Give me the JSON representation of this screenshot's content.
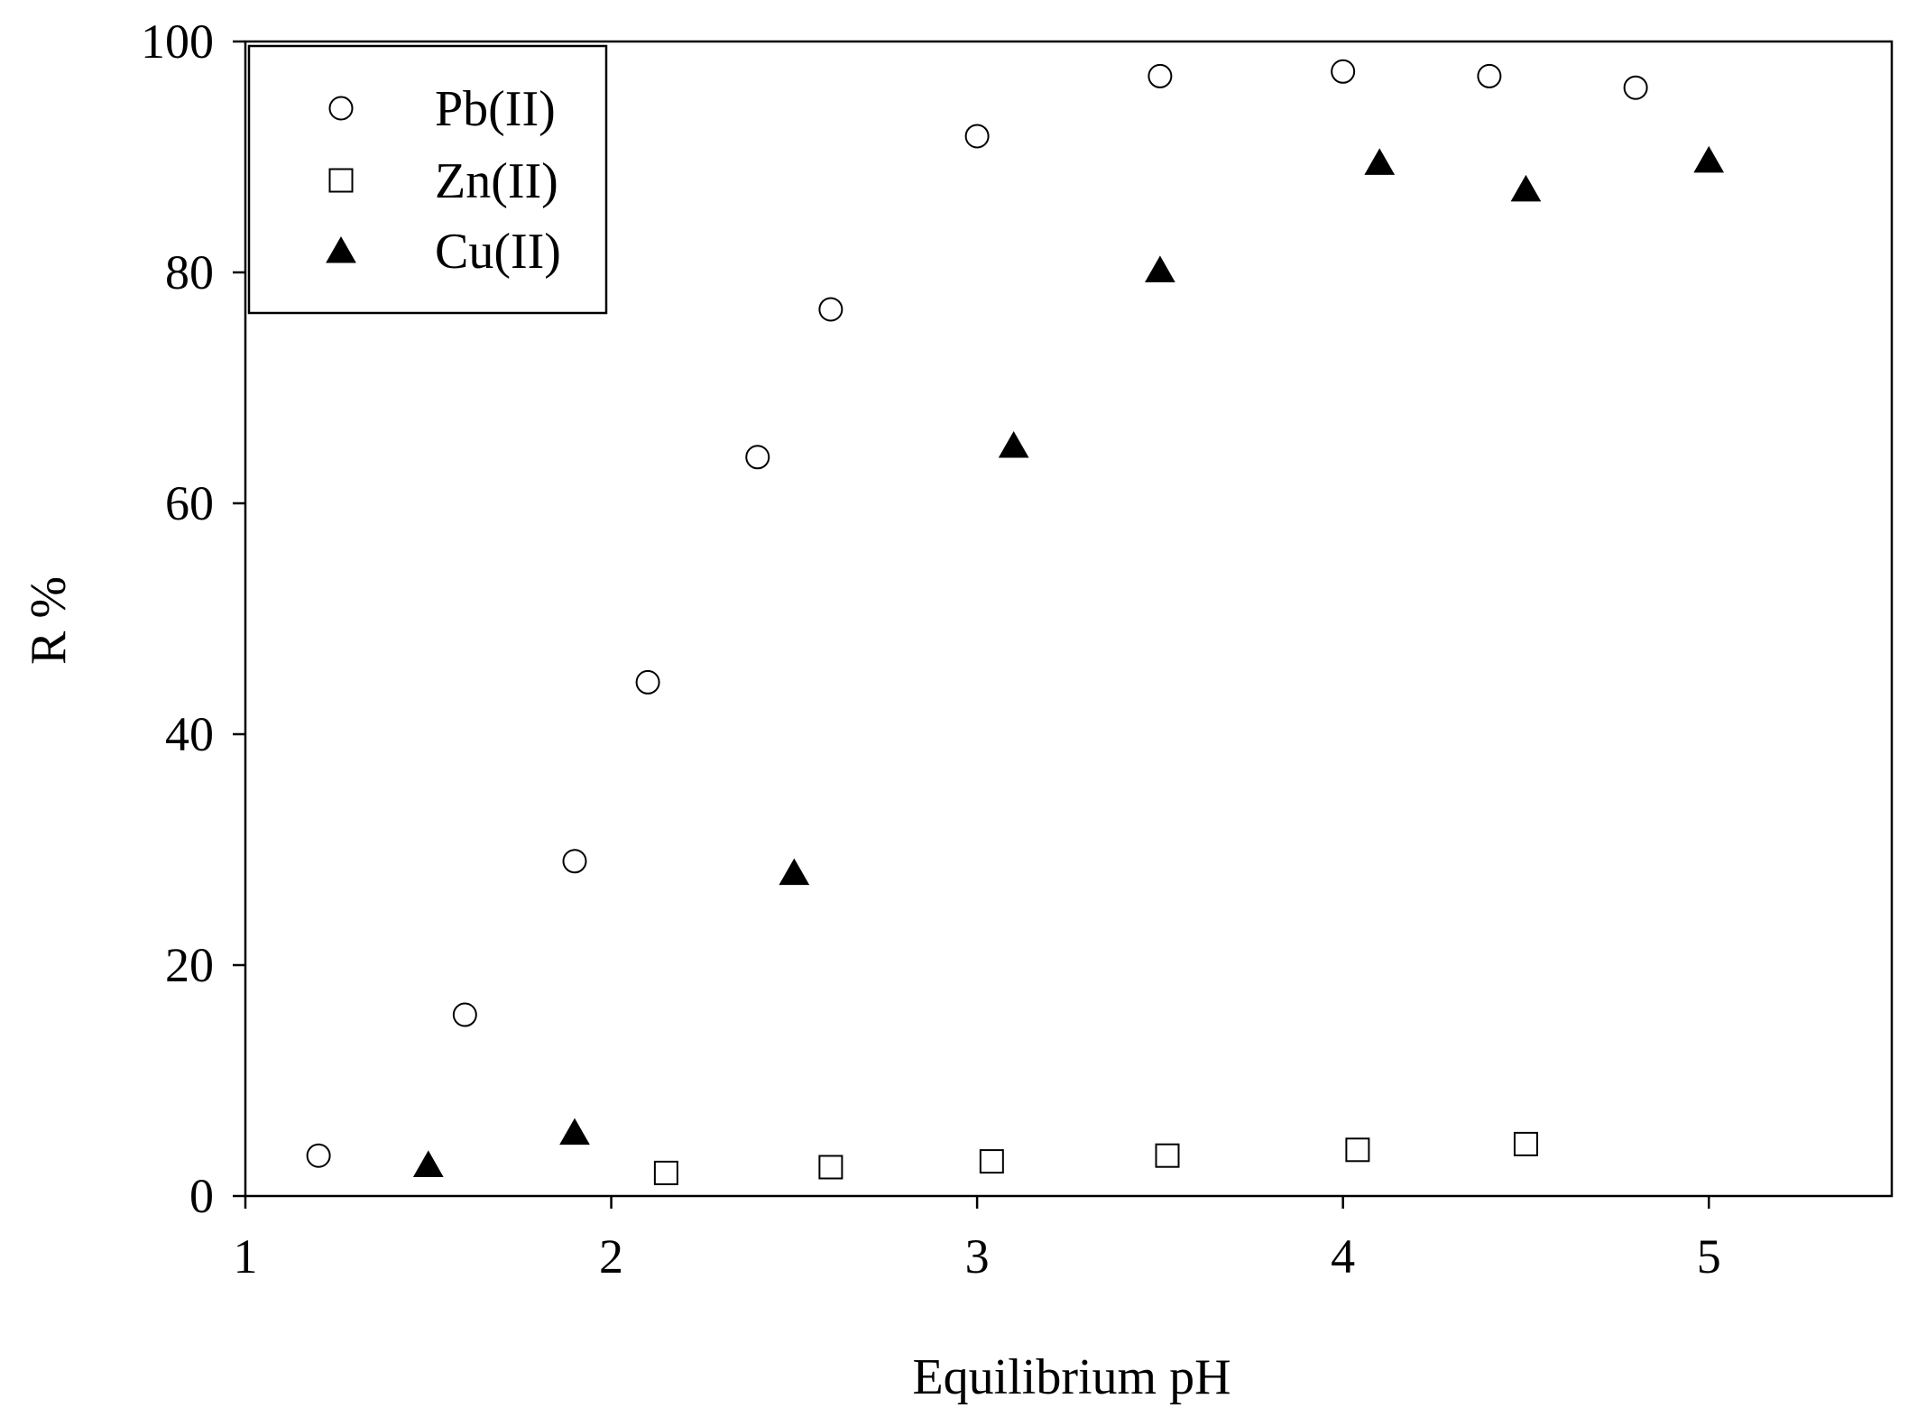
{
  "chart_data": {
    "type": "scatter",
    "xlabel": "Equilibrium pH",
    "ylabel": "R %",
    "xlim": [
      1,
      5.5
    ],
    "ylim": [
      0,
      100
    ],
    "x_ticks": [
      "1",
      "2",
      "3",
      "4",
      "5"
    ],
    "y_ticks": [
      "0",
      "20",
      "40",
      "60",
      "80",
      "100"
    ],
    "grid": false,
    "legend_position": "top-left",
    "series": [
      {
        "name": "Pb(II)",
        "marker": "open-circle",
        "color": "#000000",
        "x": [
          1.2,
          1.6,
          1.9,
          2.1,
          2.4,
          2.6,
          3.0,
          3.5,
          4.0,
          4.4,
          4.8
        ],
        "y": [
          3.5,
          15.7,
          29.0,
          44.5,
          64.0,
          76.8,
          91.8,
          97.0,
          97.4,
          97.0,
          96.0
        ]
      },
      {
        "name": "Zn(II)",
        "marker": "open-square",
        "color": "#000000",
        "x": [
          2.15,
          2.6,
          3.04,
          3.52,
          4.04,
          4.5
        ],
        "y": [
          2.0,
          2.5,
          3.0,
          3.5,
          4.0,
          4.5
        ]
      },
      {
        "name": "Cu(II)",
        "marker": "filled-triangle",
        "color": "#000000",
        "x": [
          1.5,
          1.9,
          2.5,
          3.1,
          3.5,
          4.1,
          4.5,
          5.0
        ],
        "y": [
          2.7,
          5.5,
          28.0,
          65.0,
          80.2,
          89.5,
          87.2,
          89.7
        ]
      }
    ]
  }
}
